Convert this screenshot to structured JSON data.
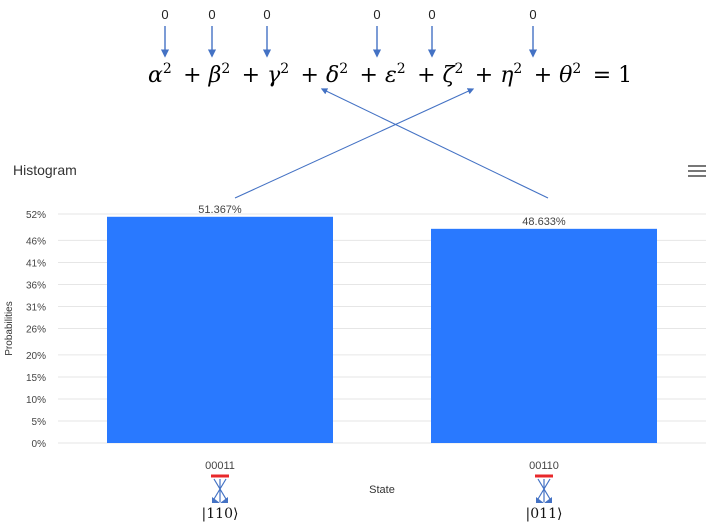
{
  "equation": {
    "parts": [
      {
        "sym": "α",
        "sup": "2"
      },
      {
        "op": "+"
      },
      {
        "sym": "β",
        "sup": "2"
      },
      {
        "op": "+"
      },
      {
        "sym": "γ",
        "sup": "2"
      },
      {
        "op": "+"
      },
      {
        "sym": "δ",
        "sup": "2"
      },
      {
        "op": "+"
      },
      {
        "sym": "ε",
        "sup": "2"
      },
      {
        "op": "+"
      },
      {
        "sym": "ζ",
        "sup": "2"
      },
      {
        "op": "+"
      },
      {
        "sym": "η",
        "sup": "2"
      },
      {
        "op": "+"
      },
      {
        "sym": "θ",
        "sup": "2"
      },
      {
        "op": "="
      },
      {
        "num": "1"
      }
    ],
    "zero_markers": [
      "0",
      "0",
      "0",
      "0",
      "0",
      "0"
    ]
  },
  "chart_data": {
    "type": "bar",
    "title": "Histogram",
    "xlabel": "State",
    "ylabel": "Probabilities",
    "categories": [
      "00011",
      "00110"
    ],
    "values": [
      51.367,
      48.633
    ],
    "data_labels": [
      "51.367%",
      "48.633%"
    ],
    "yticks": [
      "0%",
      "5%",
      "10%",
      "15%",
      "20%",
      "26%",
      "31%",
      "36%",
      "41%",
      "46%",
      "52%"
    ],
    "ylim": [
      0,
      52
    ],
    "grid": true,
    "bar_color": "#2979ff"
  },
  "ket_labels": [
    "|110⟩",
    "|011⟩"
  ],
  "colors": {
    "arrow": "#4472c4",
    "grid": "#e6e6e6",
    "marker_red": "#e8282b",
    "text": "#444444"
  },
  "menu_icon": "hamburger-menu-icon"
}
